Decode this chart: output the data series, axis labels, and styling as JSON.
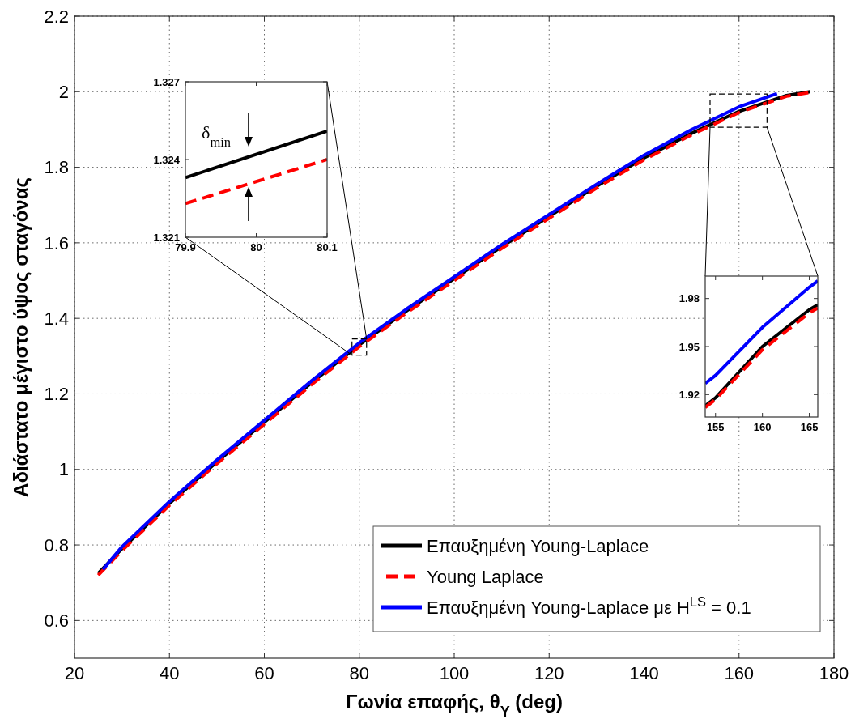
{
  "chart_data": [
    {
      "type": "line",
      "xlabel": "Γωνία επαφής, θ$_{Y}$ (deg)",
      "ylabel": "Αδιάστατο μέγιστο ύψος σταγόνας",
      "xlim": [
        20,
        180
      ],
      "ylim": [
        0.5,
        2.2
      ],
      "xticks": [
        20,
        40,
        60,
        80,
        100,
        120,
        140,
        160,
        180
      ],
      "yticks": [
        0.6,
        0.8,
        1,
        1.2,
        1.4,
        1.6,
        1.8,
        2,
        2.2
      ],
      "grid": true,
      "legend": "bottom right",
      "series": [
        {
          "name": "Επαυξημένη Young-Laplace",
          "color": "#000000",
          "line_style": "solid",
          "x": [
            25,
            30,
            40,
            50,
            60,
            70,
            80,
            90,
            100,
            110,
            120,
            130,
            140,
            150,
            160,
            170,
            175
          ],
          "values": [
            0.725,
            0.79,
            0.91,
            1.02,
            1.125,
            1.23,
            1.33,
            1.42,
            1.505,
            1.59,
            1.67,
            1.75,
            1.825,
            1.89,
            1.948,
            1.99,
            2.0
          ]
        },
        {
          "name": "Young Laplace",
          "color": "#ff0000",
          "line_style": "dashed",
          "x": [
            25,
            30,
            40,
            50,
            60,
            70,
            80,
            90,
            100,
            110,
            120,
            130,
            140,
            150,
            160,
            170,
            175
          ],
          "values": [
            0.72,
            0.785,
            0.905,
            1.015,
            1.12,
            1.225,
            1.325,
            1.415,
            1.5,
            1.585,
            1.665,
            1.745,
            1.82,
            1.886,
            1.945,
            1.988,
            1.998
          ]
        },
        {
          "name": "Επαυξημένη Young-Laplace με H$^{LS}$ = 0.1",
          "color": "#0000ff",
          "line_style": "solid",
          "x": [
            26,
            30,
            40,
            50,
            60,
            70,
            80,
            90,
            100,
            110,
            120,
            130,
            140,
            150,
            160,
            168
          ],
          "values": [
            0.735,
            0.795,
            0.915,
            1.025,
            1.13,
            1.235,
            1.335,
            1.425,
            1.51,
            1.595,
            1.675,
            1.755,
            1.832,
            1.9,
            1.96,
            1.995
          ]
        }
      ]
    },
    {
      "type": "line",
      "xlim": [
        79.9,
        80.1
      ],
      "ylim": [
        1.321,
        1.327
      ],
      "xticks": [
        79.9,
        80,
        80.1
      ],
      "yticks": [
        1.321,
        1.324,
        1.327
      ],
      "annotations": [
        "δ$_{min}$"
      ],
      "series": [
        {
          "color": "#000000",
          "line_style": "solid",
          "x": [
            79.9,
            80.1
          ],
          "values": [
            1.3233,
            1.3251
          ]
        },
        {
          "color": "#ff0000",
          "line_style": "dashed",
          "x": [
            79.9,
            80.1
          ],
          "values": [
            1.3223,
            1.324
          ]
        }
      ]
    },
    {
      "type": "line",
      "xlim": [
        153.9,
        165.9
      ],
      "ylim": [
        1.906,
        1.994
      ],
      "xticks": [
        155,
        160,
        165
      ],
      "yticks": [
        1.92,
        1.95,
        1.98
      ],
      "series": [
        {
          "color": "#000000",
          "line_style": "solid",
          "x": [
            153.9,
            155,
            160,
            165,
            165.9
          ],
          "values": [
            1.913,
            1.918,
            1.95,
            1.973,
            1.976
          ]
        },
        {
          "color": "#ff0000",
          "line_style": "dashed",
          "x": [
            153.9,
            155,
            160,
            165,
            165.9
          ],
          "values": [
            1.912,
            1.917,
            1.948,
            1.971,
            1.974
          ]
        },
        {
          "color": "#0000ff",
          "line_style": "solid",
          "x": [
            153.9,
            155,
            160,
            165,
            165.9
          ],
          "values": [
            1.927,
            1.932,
            1.962,
            1.987,
            1.991
          ]
        }
      ]
    }
  ]
}
